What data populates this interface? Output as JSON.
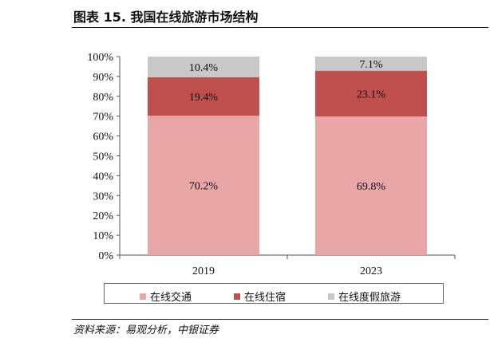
{
  "header": {
    "title": "图表 15. 我国在线旅游市场结构"
  },
  "footer": {
    "source": "资料来源：易观分析，中银证券"
  },
  "colors": {
    "online_transport": "#e8a6a6",
    "online_hotel": "#c0504d",
    "online_vacation": "#c8c8c8",
    "axis": "#555555"
  },
  "chart_data": {
    "type": "bar",
    "stacked": true,
    "categories": [
      "2019",
      "2023"
    ],
    "series": [
      {
        "name": "在线交通",
        "values": [
          70.2,
          69.8
        ],
        "labels": [
          "70.2%",
          "69.8%"
        ],
        "color": "#e8a6a6"
      },
      {
        "name": "在线住宿",
        "values": [
          19.4,
          23.1
        ],
        "labels": [
          "19.4%",
          "23.1%"
        ],
        "color": "#c0504d"
      },
      {
        "name": "在线度假旅游",
        "values": [
          10.4,
          7.1
        ],
        "labels": [
          "10.4%",
          "7.1%"
        ],
        "color": "#c8c8c8"
      }
    ],
    "ylim": [
      0,
      100
    ],
    "yticks": [
      0,
      10,
      20,
      30,
      40,
      50,
      60,
      70,
      80,
      90,
      100
    ],
    "ytick_labels": [
      "0%",
      "10%",
      "20%",
      "30%",
      "40%",
      "50%",
      "60%",
      "70%",
      "80%",
      "90%",
      "100%"
    ],
    "grid": false,
    "legend_position": "bottom"
  }
}
